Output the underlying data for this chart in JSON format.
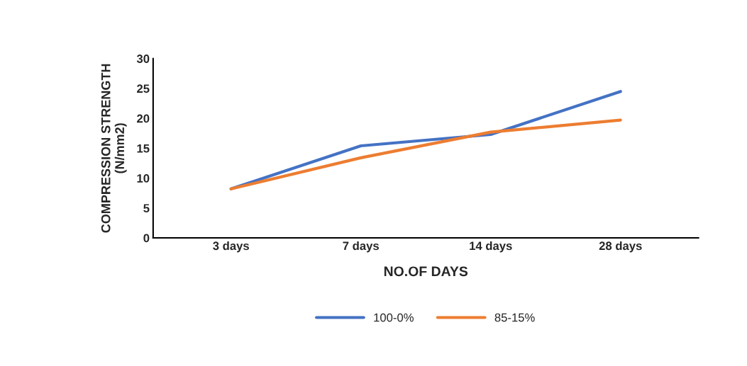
{
  "chart_data": {
    "type": "line",
    "xlabel": "NO.OF DAYS",
    "ylabel": "COMPRESSION STRENGTH\n(N/mm2)",
    "categories": [
      "3 days",
      "7 days",
      "14 days",
      "28 days"
    ],
    "series": [
      {
        "name": "100-0%",
        "color": "#4472c4",
        "values": [
          8.2,
          15.4,
          17.3,
          24.5
        ]
      },
      {
        "name": "85-15%",
        "color": "#ed7d31",
        "values": [
          8.2,
          13.4,
          17.7,
          19.7
        ]
      }
    ],
    "ylim": [
      0,
      30
    ],
    "yticks": [
      0,
      5,
      10,
      15,
      20,
      25,
      30
    ],
    "grid": false,
    "legend": "bottom",
    "marker": "none",
    "line_style": "solid"
  }
}
